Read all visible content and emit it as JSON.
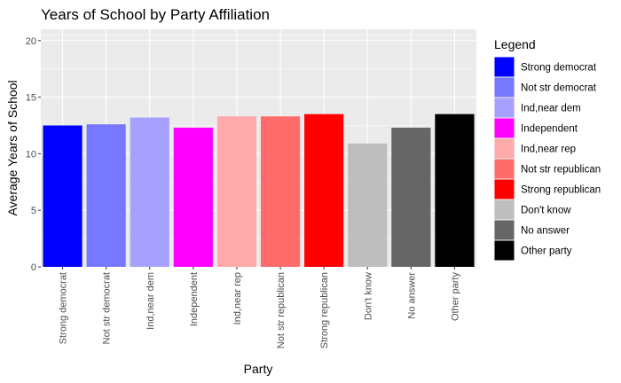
{
  "chart_data": {
    "type": "bar",
    "title": "Years of School by Party Affiliation",
    "xlabel": "Party",
    "ylabel": "Average Years of School",
    "categories": [
      "Strong democrat",
      "Not str democrat",
      "Ind,near dem",
      "Independent",
      "Ind,near rep",
      "Not str republican",
      "Strong republican",
      "Don't know",
      "No answer",
      "Other party"
    ],
    "values": [
      12.5,
      12.6,
      13.2,
      12.3,
      13.3,
      13.3,
      13.5,
      10.9,
      12.3,
      13.5
    ],
    "colors": [
      "#0000FF",
      "#7777FF",
      "#A8A0FF",
      "#FF00FF",
      "#FFAAAA",
      "#FF6B6B",
      "#FF0000",
      "#BEBEBE",
      "#666666",
      "#000000"
    ],
    "ylim": [
      0,
      21
    ],
    "yticks": [
      0,
      5,
      10,
      15,
      20
    ],
    "grid": true,
    "legend": {
      "title": "Legend",
      "placement": "right",
      "entries": [
        "Strong democrat",
        "Not str democrat",
        "Ind,near dem",
        "Independent",
        "Ind,near rep",
        "Not str republican",
        "Strong republican",
        "Don't know",
        "No answer",
        "Other party"
      ]
    }
  }
}
